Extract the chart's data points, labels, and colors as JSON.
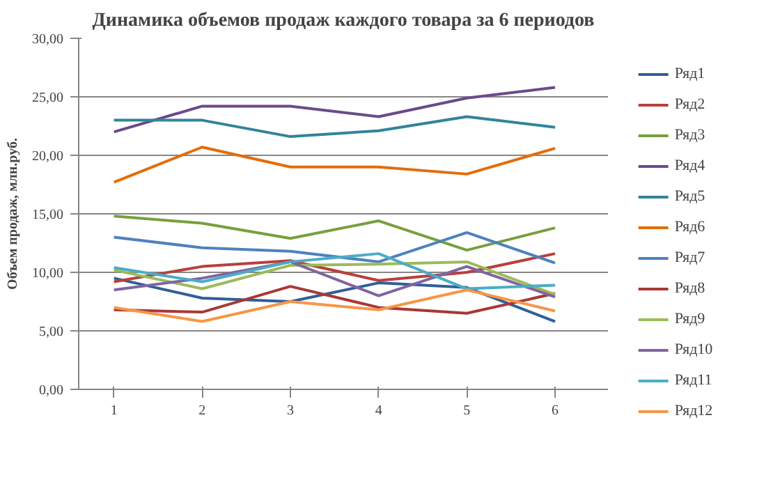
{
  "chart_data": {
    "type": "line",
    "title": "Динамика объемов продаж каждого товара за 6 периодов",
    "ylabel": "Объем продаж, млн.руб.",
    "x": [
      1,
      2,
      3,
      4,
      5,
      6
    ],
    "xlim": [
      0.6,
      6.6
    ],
    "xticks": [
      1,
      2,
      3,
      4,
      5,
      6
    ],
    "ylim": [
      0,
      30
    ],
    "yticks": [
      {
        "value": 0,
        "label": "0,00"
      },
      {
        "value": 5,
        "label": "5,00"
      },
      {
        "value": 10,
        "label": "10,00"
      },
      {
        "value": 15,
        "label": "15,00"
      },
      {
        "value": 20,
        "label": "20,00"
      },
      {
        "value": 25,
        "label": "25,00"
      },
      {
        "value": 30,
        "label": "30,00"
      }
    ],
    "grid": "y",
    "legend": "right",
    "marker": "none",
    "line_style": "solid",
    "series": [
      {
        "name": "Ряд1",
        "color": "#2f5f98",
        "values": [
          9.5,
          7.8,
          7.5,
          9.1,
          8.7,
          5.8
        ]
      },
      {
        "name": "Ряд2",
        "color": "#b7403d",
        "values": [
          9.2,
          10.5,
          11.0,
          9.3,
          10.0,
          11.6
        ]
      },
      {
        "name": "Ряд3",
        "color": "#77a03c",
        "values": [
          14.8,
          14.2,
          12.9,
          14.4,
          11.9,
          13.8
        ]
      },
      {
        "name": "Ряд4",
        "color": "#6a4a8c",
        "values": [
          22.0,
          24.2,
          24.2,
          23.3,
          24.9,
          25.8
        ]
      },
      {
        "name": "Ряд5",
        "color": "#31849b",
        "values": [
          23.0,
          23.0,
          21.6,
          22.1,
          23.3,
          22.4
        ]
      },
      {
        "name": "Ряд6",
        "color": "#e46c0a",
        "values": [
          17.7,
          20.7,
          19.0,
          19.0,
          18.4,
          20.6
        ]
      },
      {
        "name": "Ряд7",
        "color": "#4f81bd",
        "values": [
          13.0,
          12.1,
          11.8,
          10.9,
          13.4,
          10.8
        ]
      },
      {
        "name": "Ряд8",
        "color": "#a83835",
        "values": [
          6.8,
          6.6,
          8.8,
          7.0,
          6.5,
          8.2
        ]
      },
      {
        "name": "Ряд9",
        "color": "#9bbb59",
        "values": [
          10.2,
          8.6,
          10.6,
          10.7,
          10.9,
          8.1
        ]
      },
      {
        "name": "Ряд10",
        "color": "#8064a2",
        "values": [
          8.5,
          9.5,
          10.9,
          8.0,
          10.5,
          7.9
        ]
      },
      {
        "name": "Ряд11",
        "color": "#4bacc6",
        "values": [
          10.4,
          9.2,
          10.9,
          11.6,
          8.6,
          8.9
        ]
      },
      {
        "name": "Ряд12",
        "color": "#f79646",
        "values": [
          7.0,
          5.8,
          7.5,
          6.8,
          8.5,
          6.7
        ]
      }
    ]
  }
}
